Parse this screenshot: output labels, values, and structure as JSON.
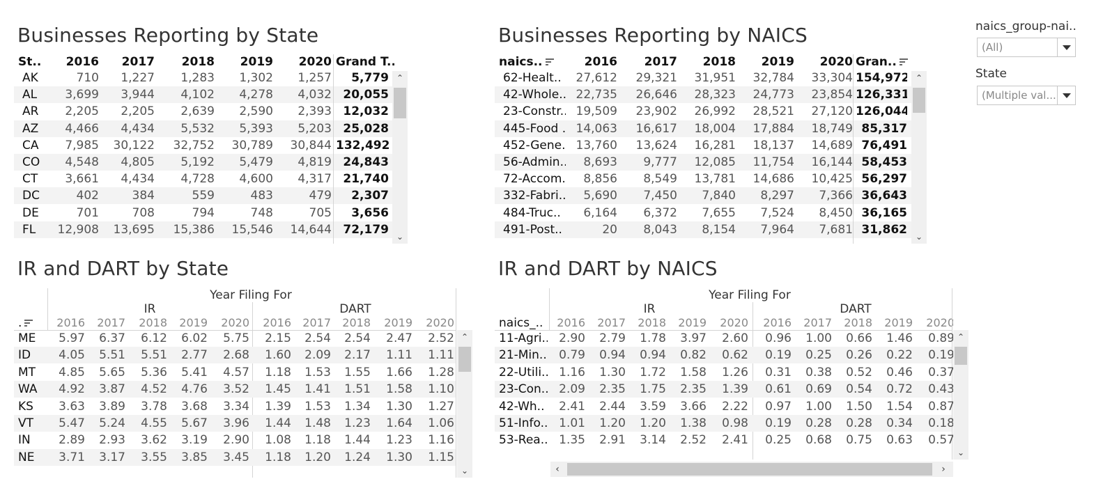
{
  "titles": {
    "biz_state": "Businesses Reporting by State",
    "biz_naics": "Businesses Reporting by NAICS",
    "ir_state": "IR and DART by State",
    "ir_naics": "IR and DART by NAICS"
  },
  "filters": {
    "naics_label": "naics_group-nai..",
    "naics_value": "(All)",
    "state_label": "State",
    "state_value": "(Multiple val..."
  },
  "biz_state": {
    "headers": [
      "St..",
      "2016",
      "2017",
      "2018",
      "2019",
      "2020",
      "Grand T.."
    ],
    "rows": [
      [
        "AK",
        "710",
        "1,227",
        "1,283",
        "1,302",
        "1,257",
        "5,779"
      ],
      [
        "AL",
        "3,699",
        "3,944",
        "4,102",
        "4,278",
        "4,032",
        "20,055"
      ],
      [
        "AR",
        "2,205",
        "2,205",
        "2,639",
        "2,590",
        "2,393",
        "12,032"
      ],
      [
        "AZ",
        "4,466",
        "4,434",
        "5,532",
        "5,393",
        "5,203",
        "25,028"
      ],
      [
        "CA",
        "7,985",
        "30,122",
        "32,752",
        "30,789",
        "30,844",
        "132,492"
      ],
      [
        "CO",
        "4,548",
        "4,805",
        "5,192",
        "5,479",
        "4,819",
        "24,843"
      ],
      [
        "CT",
        "3,661",
        "4,434",
        "4,728",
        "4,600",
        "4,317",
        "21,740"
      ],
      [
        "DC",
        "402",
        "384",
        "559",
        "483",
        "479",
        "2,307"
      ],
      [
        "DE",
        "701",
        "708",
        "794",
        "748",
        "705",
        "3,656"
      ],
      [
        "FL",
        "12,908",
        "13,695",
        "15,386",
        "15,546",
        "14,644",
        "72,179"
      ]
    ]
  },
  "biz_naics": {
    "headers": [
      "naics..",
      "2016",
      "2017",
      "2018",
      "2019",
      "2020",
      "Gran.."
    ],
    "rows": [
      [
        "62-Healt..",
        "27,612",
        "29,321",
        "31,951",
        "32,784",
        "33,304",
        "154,972"
      ],
      [
        "42-Whole..",
        "22,735",
        "26,646",
        "28,323",
        "24,773",
        "23,854",
        "126,331"
      ],
      [
        "23-Constr..",
        "19,509",
        "23,902",
        "26,992",
        "28,521",
        "27,120",
        "126,044"
      ],
      [
        "445-Food ..",
        "14,063",
        "16,617",
        "18,004",
        "17,884",
        "18,749",
        "85,317"
      ],
      [
        "452-Gene..",
        "13,760",
        "13,624",
        "16,281",
        "18,137",
        "14,689",
        "76,491"
      ],
      [
        "56-Admin..",
        "8,693",
        "9,777",
        "12,085",
        "11,754",
        "16,144",
        "58,453"
      ],
      [
        "72-Accom..",
        "8,856",
        "8,549",
        "13,781",
        "14,686",
        "10,425",
        "56,297"
      ],
      [
        "332-Fabri..",
        "5,690",
        "7,450",
        "7,840",
        "8,297",
        "7,366",
        "36,643"
      ],
      [
        "484-Truc..",
        "6,164",
        "6,372",
        "7,655",
        "7,524",
        "8,450",
        "36,165"
      ],
      [
        "491-Post..",
        "20",
        "8,043",
        "8,154",
        "7,964",
        "7,681",
        "31,862"
      ]
    ]
  },
  "ir_state": {
    "top_header": "Year Filing For",
    "groups": [
      "IR",
      "DART"
    ],
    "row_header": ".",
    "years": [
      "2016",
      "2017",
      "2018",
      "2019",
      "2020",
      "2016",
      "2017",
      "2018",
      "2019",
      "2020"
    ],
    "rows": [
      [
        "ME",
        "5.97",
        "6.37",
        "6.12",
        "6.02",
        "5.75",
        "2.15",
        "2.54",
        "2.54",
        "2.47",
        "2.52"
      ],
      [
        "ID",
        "4.05",
        "5.51",
        "5.51",
        "2.77",
        "2.68",
        "1.60",
        "2.09",
        "2.17",
        "1.11",
        "1.11"
      ],
      [
        "MT",
        "4.85",
        "5.65",
        "5.36",
        "5.41",
        "4.57",
        "1.18",
        "1.53",
        "1.55",
        "1.66",
        "1.28"
      ],
      [
        "WA",
        "4.92",
        "3.87",
        "4.52",
        "4.76",
        "3.52",
        "1.45",
        "1.41",
        "1.51",
        "1.58",
        "1.10"
      ],
      [
        "KS",
        "3.63",
        "3.89",
        "3.78",
        "3.68",
        "3.34",
        "1.39",
        "1.53",
        "1.34",
        "1.30",
        "1.27"
      ],
      [
        "VT",
        "5.47",
        "5.24",
        "4.55",
        "5.67",
        "3.96",
        "1.44",
        "1.48",
        "1.23",
        "1.64",
        "1.06"
      ],
      [
        "IN",
        "2.89",
        "2.93",
        "3.62",
        "3.19",
        "2.90",
        "1.08",
        "1.18",
        "1.44",
        "1.23",
        "1.16"
      ],
      [
        "NE",
        "3.71",
        "3.17",
        "3.55",
        "3.85",
        "3.45",
        "1.18",
        "1.20",
        "1.24",
        "1.30",
        "1.15"
      ]
    ]
  },
  "ir_naics": {
    "top_header": "Year Filing For",
    "groups": [
      "IR",
      "DART"
    ],
    "row_header": "naics_..",
    "years": [
      "2016",
      "2017",
      "2018",
      "2019",
      "2020",
      "2016",
      "2017",
      "2018",
      "2019",
      "2020"
    ],
    "rows": [
      [
        "11-Agri..",
        "2.90",
        "2.79",
        "1.78",
        "3.97",
        "2.60",
        "0.96",
        "1.00",
        "0.66",
        "1.46",
        "0.89"
      ],
      [
        "21-Min..",
        "0.79",
        "0.94",
        "0.94",
        "0.82",
        "0.62",
        "0.19",
        "0.25",
        "0.26",
        "0.22",
        "0.19"
      ],
      [
        "22-Utili..",
        "1.16",
        "1.30",
        "1.72",
        "1.58",
        "1.26",
        "0.31",
        "0.38",
        "0.52",
        "0.46",
        "0.37"
      ],
      [
        "23-Con..",
        "2.09",
        "2.35",
        "1.75",
        "2.35",
        "1.39",
        "0.61",
        "0.69",
        "0.54",
        "0.72",
        "0.43"
      ],
      [
        "42-Wh..",
        "2.41",
        "2.44",
        "3.59",
        "3.66",
        "2.22",
        "0.97",
        "1.00",
        "1.50",
        "1.54",
        "0.87"
      ],
      [
        "51-Info..",
        "1.01",
        "1.20",
        "1.20",
        "1.38",
        "0.98",
        "0.19",
        "0.28",
        "0.28",
        "0.34",
        "0.18"
      ],
      [
        "53-Rea..",
        "1.35",
        "2.91",
        "3.14",
        "2.52",
        "2.41",
        "0.25",
        "0.68",
        "0.75",
        "0.63",
        "0.57"
      ]
    ]
  }
}
